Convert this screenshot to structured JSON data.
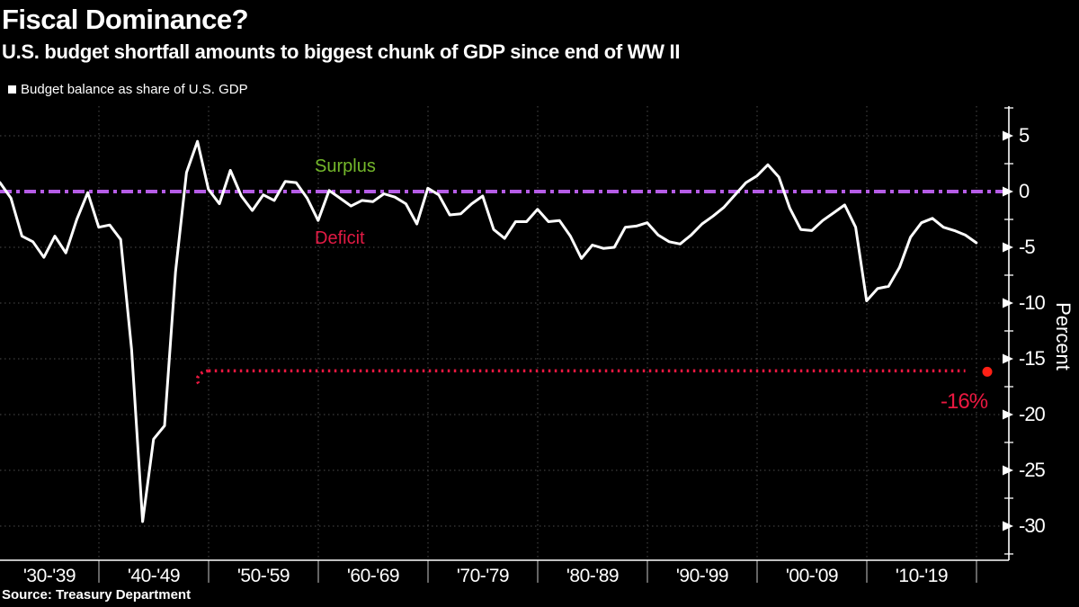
{
  "chart_data": {
    "type": "line",
    "title": "Fiscal Dominance?",
    "subtitle": "U.S. budget shortfall amounts to biggest chunk of GDP since end of WW II",
    "legend": "Budget balance as share of U.S. GDP",
    "source": "Source: Treasury Department",
    "series": [
      {
        "name": "Budget balance as share of U.S. GDP",
        "color": "#ffffff",
        "year_start": 1930,
        "year_end": 2019,
        "values": [
          0.8,
          -0.6,
          -4.0,
          -4.5,
          -5.9,
          -4.0,
          -5.5,
          -2.5,
          -0.1,
          -3.2,
          -3.0,
          -4.3,
          -14.2,
          -29.6,
          -22.2,
          -21.0,
          -7.2,
          1.7,
          4.5,
          0.2,
          -1.1,
          1.9,
          -0.4,
          -1.7,
          -0.3,
          -0.8,
          0.9,
          0.8,
          -0.6,
          -2.6,
          0.1,
          -0.6,
          -1.3,
          -0.8,
          -0.9,
          -0.2,
          -0.5,
          -1.1,
          -2.9,
          0.3,
          -0.3,
          -2.1,
          -2.0,
          -1.1,
          -0.4,
          -3.4,
          -4.2,
          -2.7,
          -2.7,
          -1.6,
          -2.7,
          -2.6,
          -4.0,
          -6.0,
          -4.8,
          -5.1,
          -5.0,
          -3.2,
          -3.1,
          -2.8,
          -3.9,
          -4.5,
          -4.7,
          -3.9,
          -2.9,
          -2.2,
          -1.4,
          -0.3,
          0.8,
          1.4,
          2.4,
          1.3,
          -1.5,
          -3.4,
          -3.5,
          -2.6,
          -1.9,
          -1.2,
          -3.2,
          -9.8,
          -8.7,
          -8.5,
          -6.8,
          -4.1,
          -2.8,
          -2.4,
          -3.2,
          -3.5,
          -3.9,
          -4.6
        ]
      }
    ],
    "x_axis": {
      "labels": [
        "'30-'39",
        "'40-'49",
        "'50-'59",
        "'60-'69",
        "'70-'79",
        "'80-'89",
        "'90-'99",
        "'00-'09",
        "'10-'19"
      ]
    },
    "y_axis": {
      "label": "Percent",
      "ticks": [
        5,
        0,
        -5,
        -10,
        -15,
        -20,
        -25,
        -30
      ],
      "minor_tick_step": 2.5,
      "range": [
        -32.5,
        7.5
      ]
    },
    "annotations": {
      "surplus_label": "Surplus",
      "surplus_color": "#74b82b",
      "deficit_label": "Deficit",
      "deficit_color": "#e21a44",
      "zero_line": {
        "value": 0,
        "color": "#b55ce6",
        "style": "dash-dot"
      },
      "deficit_line": {
        "value": -16,
        "color": "#ea1840",
        "style": "dotted",
        "year_start": 1949,
        "year_end": 2018
      },
      "projection": {
        "label": "-16%",
        "value": -16,
        "year": 2020,
        "color": "#ea1840",
        "dot_color": "#ff2015"
      }
    },
    "grid": true,
    "background": "#000000"
  }
}
